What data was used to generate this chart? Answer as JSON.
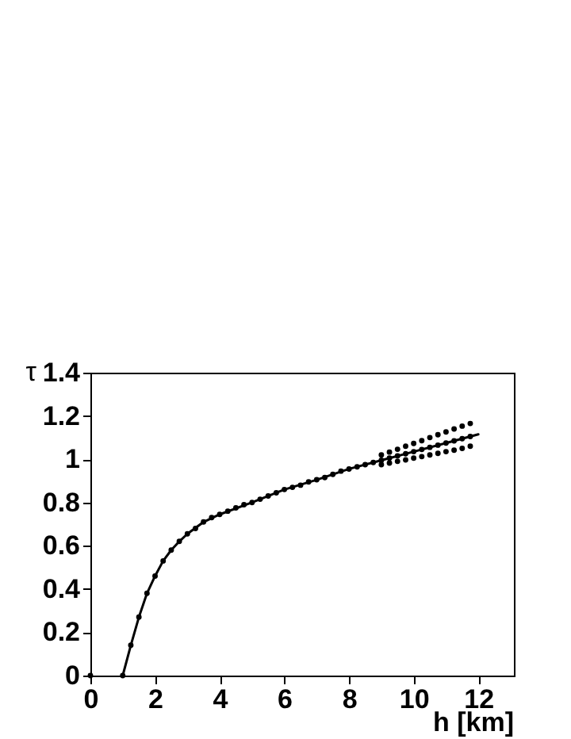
{
  "chart_data": {
    "type": "scatter",
    "xlabel": "h [km]",
    "ylabel": "τ",
    "xlim": [
      0,
      13.1
    ],
    "ylim": [
      0,
      1.4
    ],
    "xticks": [
      0,
      2,
      4,
      6,
      8,
      10,
      12
    ],
    "yticks": [
      0,
      0.2,
      0.4,
      0.6,
      0.8,
      1,
      1.2,
      1.4
    ],
    "grid": false,
    "marker": "circle",
    "series": [
      {
        "color": "#000000",
        "x": [
          0,
          1,
          1.25,
          1.5,
          1.75,
          2,
          2.25,
          2.5,
          2.75,
          3,
          3.25,
          3.5,
          3.75,
          4,
          4.25,
          4.5,
          4.75,
          5,
          5.25,
          5.5,
          5.75,
          6,
          6.25,
          6.5,
          6.75,
          7,
          7.25,
          7.5,
          7.75,
          8,
          8.25,
          8.5,
          8.75,
          9,
          9.25,
          9.5,
          9.75,
          10,
          10.25,
          10.5,
          10.75,
          11,
          11.25,
          11.5,
          11.75
        ],
        "values": [
          0,
          0,
          0.14,
          0.27,
          0.38,
          0.46,
          0.53,
          0.58,
          0.62,
          0.655,
          0.68,
          0.71,
          0.73,
          0.745,
          0.76,
          0.775,
          0.79,
          0.8,
          0.815,
          0.83,
          0.845,
          0.86,
          0.87,
          0.88,
          0.895,
          0.905,
          0.915,
          0.93,
          0.945,
          0.955,
          0.965,
          0.975,
          0.985,
          0.995,
          1.005,
          1.015,
          1.025,
          1.035,
          1.045,
          1.055,
          1.065,
          1.075,
          1.085,
          1.095,
          1.105
        ]
      },
      {
        "color": "#000000",
        "x": [
          9,
          9.25,
          9.5,
          9.75,
          10,
          10.25,
          10.5,
          10.75,
          11,
          11.25,
          11.5,
          11.75
        ],
        "values": [
          1.02,
          1.033,
          1.046,
          1.06,
          1.073,
          1.086,
          1.1,
          1.113,
          1.126,
          1.14,
          1.153,
          1.165
        ]
      },
      {
        "color": "#000000",
        "x": [
          9,
          9.25,
          9.5,
          9.75,
          10,
          10.25,
          10.5,
          10.75,
          11,
          11.25,
          11.5,
          11.75
        ],
        "values": [
          0.975,
          0.982,
          0.99,
          0.997,
          1.005,
          1.012,
          1.02,
          1.027,
          1.035,
          1.042,
          1.05,
          1.06
        ]
      },
      {
        "type": "line",
        "marker": "none",
        "line_style": "solid",
        "color": "#000000",
        "x": [
          1,
          1.25,
          1.5,
          1.75,
          2,
          2.25,
          2.5,
          2.75,
          3,
          3.5,
          4,
          5,
          6,
          7,
          8,
          9,
          10,
          11,
          12
        ],
        "values": [
          0,
          0.14,
          0.27,
          0.38,
          0.46,
          0.53,
          0.58,
          0.62,
          0.655,
          0.71,
          0.745,
          0.8,
          0.86,
          0.905,
          0.955,
          0.995,
          1.035,
          1.075,
          1.115
        ]
      }
    ]
  }
}
